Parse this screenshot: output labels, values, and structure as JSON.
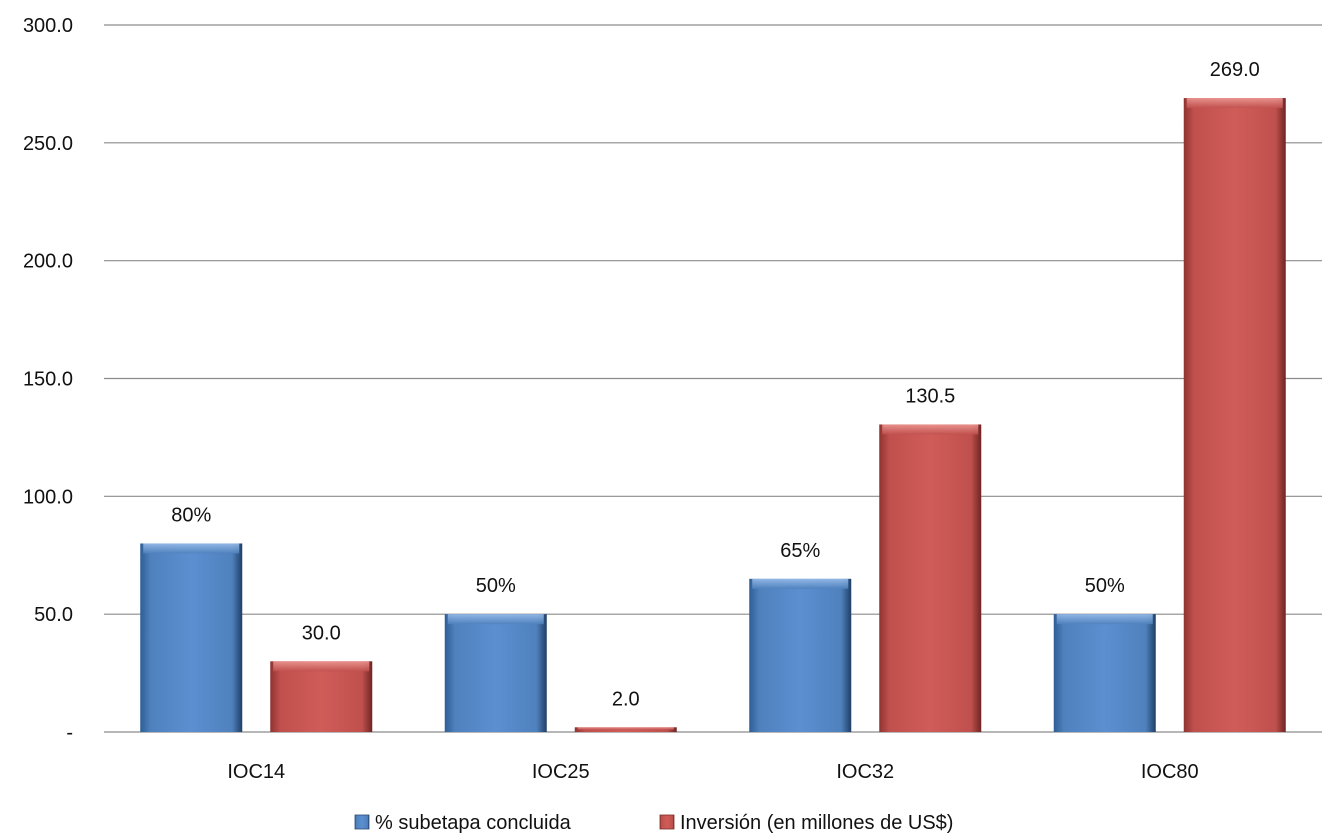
{
  "chart_data": {
    "type": "bar",
    "title": "",
    "xlabel": "",
    "ylabel": "",
    "categories": [
      "IOC14",
      "IOC25",
      "IOC32",
      "IOC80"
    ],
    "series": [
      {
        "name": "% subetapa concluida",
        "values": [
          80,
          50,
          65,
          50
        ],
        "labels": [
          "80%",
          "50%",
          "65%",
          "50%"
        ],
        "color": "#4F81BD"
      },
      {
        "name": "Inversión (en millones de US$)",
        "values": [
          30.0,
          2.0,
          130.5,
          269.0
        ],
        "labels": [
          "30.0",
          "2.0",
          "130.5",
          "269.0"
        ],
        "color": "#C0504D"
      }
    ],
    "ylim": [
      0,
      300
    ],
    "yticks": [
      0,
      50,
      100,
      150,
      200,
      250,
      300
    ],
    "ytick_labels": [
      "-",
      "50.0",
      "100.0",
      "150.0",
      "200.0",
      "250.0",
      "300.0"
    ],
    "grid": true,
    "legend_position": "bottom"
  }
}
